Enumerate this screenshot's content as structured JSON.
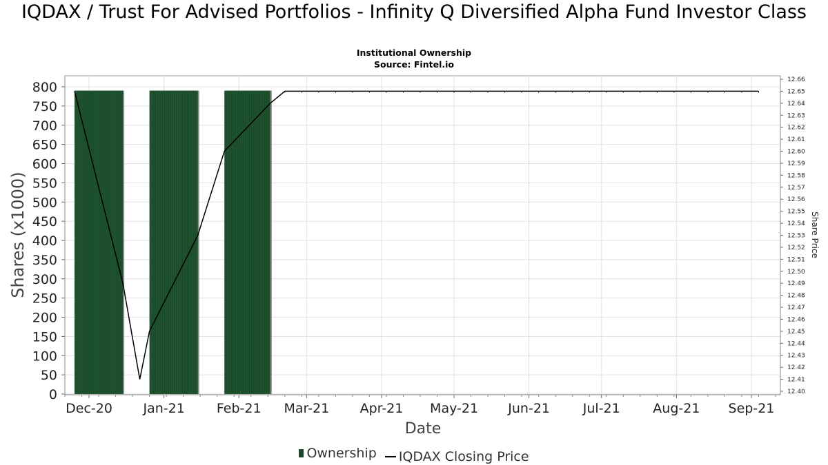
{
  "title": "IQDAX / Trust For Advised Portfolios - Infinity Q Diversified Alpha Fund Investor Class",
  "subtitle_line1": "Institutional Ownership",
  "subtitle_line2": "Source: Fintel.io",
  "legend": {
    "ownership_label": "Ownership",
    "price_label": "IQDAX Closing Price"
  },
  "colors": {
    "bar": "#1b4b2a",
    "bar_shadow": "#8a8a8a",
    "price_line": "#000000",
    "grid": "#e0e0e0"
  },
  "chart_data": {
    "type": "bar",
    "title": "IQDAX / Trust For Advised Portfolios - Infinity Q Diversified Alpha Fund Investor Class",
    "subtitle": "Institutional Ownership",
    "xlabel": "Date",
    "ylabel": "Shares (x1000)",
    "y2label": "Share Price",
    "ylim": [
      0,
      820
    ],
    "y2lim": [
      12.4,
      12.66
    ],
    "xlim": [
      "2020-11-21",
      "2021-09-13"
    ],
    "yticks": [
      0,
      50,
      100,
      150,
      200,
      250,
      300,
      350,
      400,
      450,
      500,
      550,
      600,
      650,
      700,
      750,
      800
    ],
    "y2ticks": [
      "12.40",
      "12.41",
      "12.42",
      "12.43",
      "12.44",
      "12.45",
      "12.46",
      "12.47",
      "12.48",
      "12.49",
      "12.50",
      "12.51",
      "12.52",
      "12.53",
      "12.54",
      "12.55",
      "12.56",
      "12.57",
      "12.58",
      "12.59",
      "12.60",
      "12.61",
      "12.62",
      "12.63",
      "12.64",
      "12.65",
      "12.66"
    ],
    "xticks": [
      {
        "label": "Dec-20",
        "date": "2020-12-01"
      },
      {
        "label": "Jan-21",
        "date": "2021-01-01"
      },
      {
        "label": "Feb-21",
        "date": "2021-02-01"
      },
      {
        "label": "Mar-21",
        "date": "2021-03-01"
      },
      {
        "label": "Apr-21",
        "date": "2021-04-01"
      },
      {
        "label": "May-21",
        "date": "2021-05-01"
      },
      {
        "label": "Jun-21",
        "date": "2021-06-01"
      },
      {
        "label": "Jul-21",
        "date": "2021-07-01"
      },
      {
        "label": "Aug-21",
        "date": "2021-08-01"
      },
      {
        "label": "Sep-21",
        "date": "2021-09-01"
      }
    ],
    "grid": true,
    "legend_position": "bottom",
    "series": [
      {
        "name": "Ownership",
        "type": "bar",
        "axis": "left",
        "bars": [
          {
            "start": "2020-11-25",
            "end": "2020-12-15",
            "value": 790
          },
          {
            "start": "2020-12-26",
            "end": "2021-01-15",
            "value": 790
          },
          {
            "start": "2021-01-26",
            "end": "2021-02-14",
            "value": 790
          }
        ]
      },
      {
        "name": "IQDAX Closing Price",
        "type": "line",
        "axis": "right",
        "points": [
          {
            "x": "2020-11-25",
            "y": 12.65
          },
          {
            "x": "2020-12-15",
            "y": 12.49
          },
          {
            "x": "2020-12-22",
            "y": 12.41
          },
          {
            "x": "2020-12-26",
            "y": 12.45
          },
          {
            "x": "2021-01-15",
            "y": 12.53
          },
          {
            "x": "2021-01-26",
            "y": 12.6
          },
          {
            "x": "2021-02-14",
            "y": 12.64
          },
          {
            "x": "2021-02-20",
            "y": 12.65
          },
          {
            "x": "2021-09-04",
            "y": 12.65
          }
        ]
      }
    ]
  }
}
